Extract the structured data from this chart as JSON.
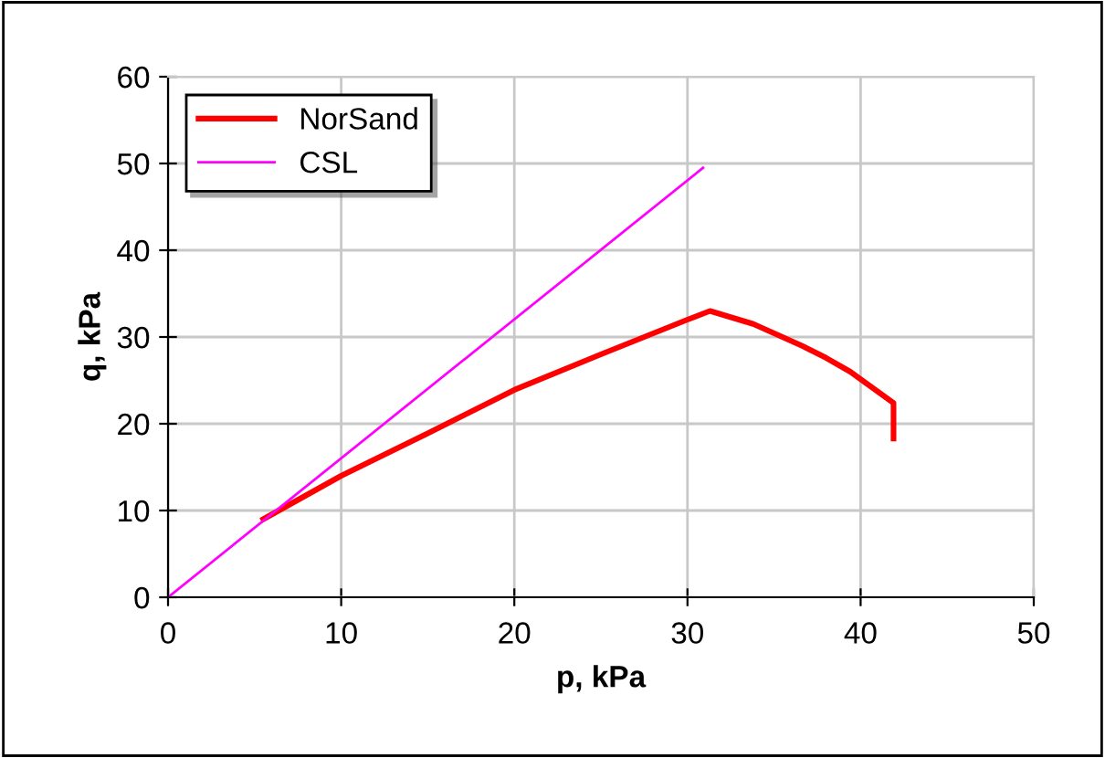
{
  "chart_data": {
    "type": "line",
    "xlabel": "p, kPa",
    "ylabel": "q, kPa",
    "xlim": [
      0,
      50
    ],
    "ylim": [
      0,
      60
    ],
    "xticks": [
      0,
      10,
      20,
      30,
      40,
      50
    ],
    "yticks": [
      0,
      10,
      20,
      30,
      40,
      50,
      60
    ],
    "grid": true,
    "legend": "top left",
    "series": [
      {
        "name": "NorSand",
        "color": "#ff0000",
        "x": [
          5.5,
          10,
          15,
          20,
          25,
          30,
          31.3,
          33.8,
          36.6,
          38.0,
          39.4,
          41.9,
          41.9
        ],
        "values": [
          9.0,
          14.0,
          18.9,
          23.9,
          28.0,
          32.0,
          33.0,
          31.5,
          29.0,
          27.6,
          26.0,
          22.4,
          18.3
        ]
      },
      {
        "name": "CSL",
        "color": "#ff00ff",
        "x": [
          0,
          30.9
        ],
        "values": [
          0,
          49.5
        ]
      }
    ]
  }
}
